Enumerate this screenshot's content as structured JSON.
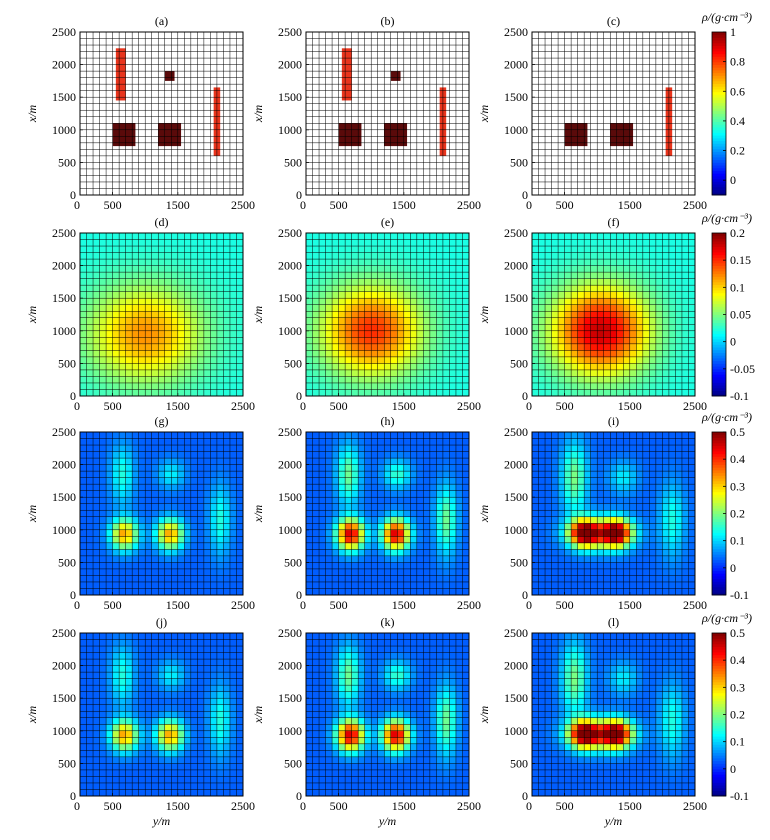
{
  "figure": {
    "units_label": "ρ/(g·cm⁻³)",
    "xlabel": "y/m",
    "ylabel": "x/m"
  },
  "chart_data": [
    {
      "type": "heatmap",
      "title": "(a)",
      "kind": "model",
      "colorbar": false,
      "field": "model_full",
      "xticks": [
        0,
        500,
        1500,
        2500
      ],
      "yticks": [
        0,
        500,
        1000,
        1500,
        2000,
        2500
      ],
      "xlabel": "",
      "ylabel": "x/m",
      "xlim": [
        0,
        2500
      ],
      "ylim": [
        0,
        2500
      ],
      "grid": true
    },
    {
      "type": "heatmap",
      "title": "(b)",
      "kind": "model",
      "colorbar": false,
      "field": "model_full",
      "xticks": [
        0,
        500,
        1500,
        2500
      ],
      "yticks": [
        0,
        500,
        1000,
        1500,
        2000,
        2500
      ],
      "xlabel": "",
      "ylabel": "x/m",
      "xlim": [
        0,
        2500
      ],
      "ylim": [
        0,
        2500
      ],
      "grid": true
    },
    {
      "type": "heatmap",
      "title": "(c)",
      "kind": "model",
      "colorbar": true,
      "colorbar_ticks": [
        0,
        0.2,
        0.4,
        0.6,
        0.8,
        1
      ],
      "colorbar_range": [
        -0.1,
        1
      ],
      "field": "model_partial",
      "xticks": [
        0,
        500,
        1500,
        2500
      ],
      "yticks": [
        0,
        500,
        1000,
        1500,
        2000,
        2500
      ],
      "xlabel": "",
      "ylabel": "x/m",
      "xlim": [
        0,
        2500
      ],
      "ylim": [
        0,
        2500
      ],
      "grid": true
    },
    {
      "type": "heatmap",
      "title": "(d)",
      "kind": "smooth",
      "colorbar": false,
      "peak": 0.12,
      "center": [
        1000,
        950
      ],
      "sigma": [
        620,
        520
      ],
      "bg": 0.02,
      "xticks": [
        0,
        500,
        1500,
        2500
      ],
      "yticks": [
        0,
        500,
        1000,
        1500,
        2000,
        2500
      ],
      "xlabel": "",
      "ylabel": "x/m",
      "xlim": [
        0,
        2500
      ],
      "ylim": [
        0,
        2500
      ],
      "grid": true
    },
    {
      "type": "heatmap",
      "title": "(e)",
      "kind": "smooth",
      "colorbar": false,
      "peak": 0.15,
      "center": [
        1000,
        1000
      ],
      "sigma": [
        540,
        480
      ],
      "bg": 0.02,
      "xticks": [
        0,
        500,
        1500,
        2500
      ],
      "yticks": [
        0,
        500,
        1000,
        1500,
        2000,
        2500
      ],
      "xlabel": "",
      "ylabel": "x/m",
      "xlim": [
        0,
        2500
      ],
      "ylim": [
        0,
        2500
      ],
      "grid": true
    },
    {
      "type": "heatmap",
      "title": "(f)",
      "kind": "smooth",
      "colorbar": true,
      "colorbar_ticks": [
        -0.1,
        -0.05,
        0,
        0.05,
        0.1,
        0.15,
        0.2
      ],
      "colorbar_range": [
        -0.1,
        0.2
      ],
      "peak": 0.18,
      "center": [
        1050,
        1000
      ],
      "sigma": [
        520,
        470
      ],
      "bg": 0.02,
      "xticks": [
        0,
        500,
        1500,
        2500
      ],
      "yticks": [
        0,
        500,
        1000,
        1500,
        2000,
        2500
      ],
      "xlabel": "",
      "ylabel": "x/m",
      "xlim": [
        0,
        2500
      ],
      "ylim": [
        0,
        2500
      ],
      "grid": true
    },
    {
      "type": "heatmap",
      "title": "(g)",
      "kind": "blobs",
      "colorbar": false,
      "scale": 0.3,
      "bg": 0.03,
      "xticks": [
        0,
        500,
        1500,
        2500
      ],
      "yticks": [
        0,
        500,
        1000,
        1500,
        2000,
        2500
      ],
      "xlabel": "",
      "ylabel": "x/m",
      "xlim": [
        0,
        2500
      ],
      "ylim": [
        0,
        2500
      ],
      "grid": true
    },
    {
      "type": "heatmap",
      "title": "(h)",
      "kind": "blobs",
      "colorbar": false,
      "scale": 0.42,
      "bg": 0.03,
      "xticks": [
        0,
        500,
        1500,
        2500
      ],
      "yticks": [
        0,
        500,
        1000,
        1500,
        2000,
        2500
      ],
      "xlabel": "",
      "ylabel": "x/m",
      "xlim": [
        0,
        2500
      ],
      "ylim": [
        0,
        2500
      ],
      "grid": true
    },
    {
      "type": "heatmap",
      "title": "(i)",
      "kind": "blobs_merged",
      "colorbar": true,
      "colorbar_ticks": [
        -0.1,
        0,
        0.1,
        0.2,
        0.3,
        0.4,
        0.5
      ],
      "colorbar_range": [
        -0.1,
        0.5
      ],
      "scale": 0.4,
      "bg": 0.03,
      "xticks": [
        0,
        500,
        1500,
        2500
      ],
      "yticks": [
        0,
        500,
        1000,
        1500,
        2000,
        2500
      ],
      "xlabel": "",
      "ylabel": "x/m",
      "xlim": [
        0,
        2500
      ],
      "ylim": [
        0,
        2500
      ],
      "grid": true
    },
    {
      "type": "heatmap",
      "title": "(j)",
      "kind": "blobs",
      "colorbar": false,
      "scale": 0.3,
      "bg": 0.03,
      "xticks": [
        0,
        500,
        1500,
        2500
      ],
      "yticks": [
        0,
        500,
        1000,
        1500,
        2000,
        2500
      ],
      "xlabel": "y/m",
      "ylabel": "x/m",
      "xlim": [
        0,
        2500
      ],
      "ylim": [
        0,
        2500
      ],
      "grid": true
    },
    {
      "type": "heatmap",
      "title": "(k)",
      "kind": "blobs",
      "colorbar": false,
      "scale": 0.42,
      "bg": 0.03,
      "xticks": [
        0,
        500,
        1500,
        2500
      ],
      "yticks": [
        0,
        500,
        1000,
        1500,
        2000,
        2500
      ],
      "xlabel": "y/m",
      "ylabel": "x/m",
      "xlim": [
        0,
        2500
      ],
      "ylim": [
        0,
        2500
      ],
      "grid": true
    },
    {
      "type": "heatmap",
      "title": "(l)",
      "kind": "blobs_merged",
      "colorbar": true,
      "colorbar_ticks": [
        -0.1,
        0,
        0.1,
        0.2,
        0.3,
        0.4,
        0.5
      ],
      "colorbar_range": [
        -0.1,
        0.5
      ],
      "scale": 0.4,
      "bg": 0.03,
      "xticks": [
        0,
        500,
        1500,
        2500
      ],
      "yticks": [
        0,
        500,
        1000,
        1500,
        2000,
        2500
      ],
      "xlabel": "y/m",
      "ylabel": "x/m",
      "xlim": [
        0,
        2500
      ],
      "ylim": [
        0,
        2500
      ],
      "grid": true
    }
  ],
  "models": {
    "model_full": [
      {
        "name": "vertical-dyke-left",
        "y": [
          550,
          700
        ],
        "x": [
          1450,
          2250
        ],
        "density": 0.8
      },
      {
        "name": "small-cube-top",
        "y": [
          1300,
          1450
        ],
        "x": [
          1750,
          1900
        ],
        "density": 1.0
      },
      {
        "name": "block-left",
        "y": [
          500,
          850
        ],
        "x": [
          750,
          1100
        ],
        "density": 1.0
      },
      {
        "name": "block-middle",
        "y": [
          1200,
          1550
        ],
        "x": [
          750,
          1100
        ],
        "density": 1.0
      },
      {
        "name": "vertical-dyke-right",
        "y": [
          2050,
          2150
        ],
        "x": [
          600,
          1650
        ],
        "density": 0.8
      }
    ],
    "model_partial": [
      {
        "name": "block-left",
        "y": [
          500,
          850
        ],
        "x": [
          750,
          1100
        ],
        "density": 1.0
      },
      {
        "name": "block-middle",
        "y": [
          1200,
          1550
        ],
        "x": [
          750,
          1100
        ],
        "density": 1.0
      },
      {
        "name": "vertical-dyke-right",
        "y": [
          2050,
          2150
        ],
        "x": [
          600,
          1650
        ],
        "density": 0.8
      }
    ]
  },
  "colors": {
    "colormap": [
      "#00007f",
      "#0000ff",
      "#007fff",
      "#00ffff",
      "#7fff7f",
      "#ffff00",
      "#ff7f00",
      "#ff0000",
      "#7f0000"
    ],
    "dark_block": "#5a0a0a",
    "dyke": "#e8341c",
    "grid_line": "#000000"
  }
}
